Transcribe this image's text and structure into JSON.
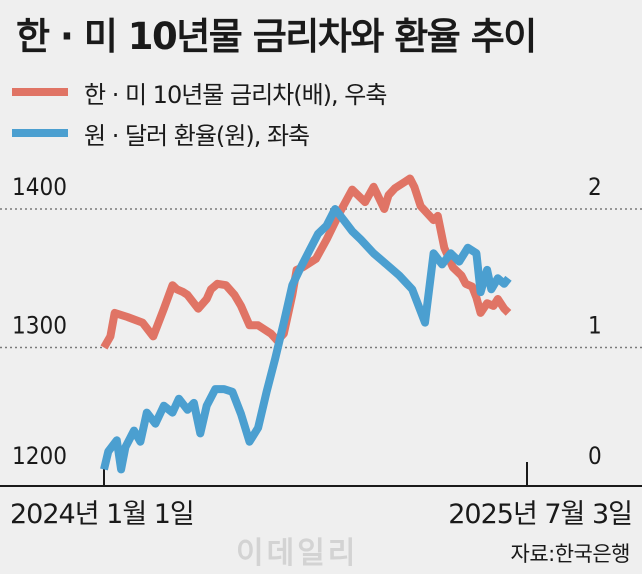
{
  "title": "한 · 미 10년물 금리차와 환율 추이",
  "source": "자료:한국은행",
  "watermark": "이데일리",
  "chart_data": {
    "type": "line",
    "title": "한 · 미 10년물 금리차와 환율 추이",
    "x_start": "2024년 1월 1일",
    "x_end": "2025년 7월 3일",
    "x_range": [
      0,
      1
    ],
    "left_axis": {
      "ticks": [
        "1400",
        "1300",
        "1200"
      ],
      "values": [
        1400,
        1300,
        1200
      ],
      "ylim": [
        1200,
        1420
      ]
    },
    "right_axis": {
      "ticks": [
        "2",
        "1",
        "0"
      ],
      "values": [
        2,
        1,
        0
      ],
      "ylim": [
        0,
        2.2
      ]
    },
    "grid": "dotted horizontal lines at 1400 / 1300",
    "series": [
      {
        "name": "한 · 미 10년물 금리차(배), 우축",
        "axis": "right",
        "color": "#e07465",
        "x": [
          0.0,
          0.015,
          0.025,
          0.055,
          0.09,
          0.115,
          0.14,
          0.16,
          0.17,
          0.185,
          0.195,
          0.22,
          0.24,
          0.25,
          0.265,
          0.285,
          0.305,
          0.32,
          0.34,
          0.36,
          0.39,
          0.405,
          0.42,
          0.44,
          0.45,
          0.465,
          0.485,
          0.495,
          0.52,
          0.55,
          0.58,
          0.61,
          0.63,
          0.655,
          0.665,
          0.68,
          0.705,
          0.715,
          0.725,
          0.74,
          0.77,
          0.78,
          0.795,
          0.815,
          0.835,
          0.845,
          0.86,
          0.87,
          0.88,
          0.895,
          0.91,
          0.92,
          0.935,
          0.945
        ],
        "values": [
          1.0,
          1.08,
          1.25,
          1.22,
          1.18,
          1.08,
          1.28,
          1.45,
          1.42,
          1.4,
          1.38,
          1.28,
          1.35,
          1.42,
          1.46,
          1.45,
          1.38,
          1.3,
          1.16,
          1.16,
          1.1,
          1.05,
          1.1,
          1.38,
          1.56,
          1.58,
          1.62,
          1.64,
          1.78,
          1.97,
          2.14,
          2.05,
          2.16,
          2.0,
          2.1,
          2.15,
          2.2,
          2.22,
          2.16,
          2.02,
          1.92,
          1.95,
          1.72,
          1.58,
          1.52,
          1.46,
          1.44,
          1.36,
          1.25,
          1.32,
          1.3,
          1.35,
          1.28,
          1.25
        ]
      },
      {
        "name": "원 · 달러 환율(원), 좌축",
        "axis": "left",
        "color": "#4b9fd0",
        "x": [
          0.0,
          0.01,
          0.03,
          0.04,
          0.05,
          0.07,
          0.085,
          0.1,
          0.12,
          0.14,
          0.16,
          0.175,
          0.195,
          0.21,
          0.225,
          0.24,
          0.26,
          0.28,
          0.3,
          0.32,
          0.34,
          0.36,
          0.38,
          0.4,
          0.42,
          0.44,
          0.46,
          0.48,
          0.5,
          0.52,
          0.54,
          0.56,
          0.58,
          0.6,
          0.63,
          0.66,
          0.69,
          0.72,
          0.75,
          0.77,
          0.79,
          0.81,
          0.83,
          0.85,
          0.87,
          0.88,
          0.895,
          0.905,
          0.92,
          0.935,
          0.945
        ],
        "values": [
          1212,
          1225,
          1233,
          1212,
          1228,
          1240,
          1232,
          1253,
          1245,
          1258,
          1253,
          1263,
          1255,
          1260,
          1238,
          1258,
          1270,
          1270,
          1268,
          1252,
          1232,
          1242,
          1268,
          1292,
          1318,
          1345,
          1358,
          1370,
          1382,
          1388,
          1400,
          1392,
          1384,
          1378,
          1368,
          1360,
          1352,
          1342,
          1318,
          1368,
          1360,
          1368,
          1362,
          1372,
          1368,
          1340,
          1356,
          1342,
          1350,
          1346,
          1350
        ]
      }
    ]
  },
  "legend": [
    {
      "label": "한 · 미 10년물 금리차(배), 우축",
      "color": "#e07465"
    },
    {
      "label": "원 · 달러 환율(원), 좌축",
      "color": "#4b9fd0"
    }
  ]
}
